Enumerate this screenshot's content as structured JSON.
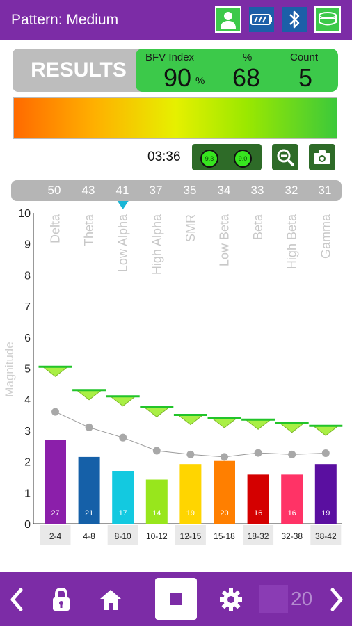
{
  "header": {
    "title": "Pattern: Medium",
    "icons": [
      "user-icon",
      "battery-icon",
      "bluetooth-icon",
      "headband-icon"
    ]
  },
  "results": {
    "label": "RESULTS",
    "bfv_label": "BFV Index",
    "bfv_value": "90",
    "bfv_unit": "%",
    "pct_label": "%",
    "pct_value": "68",
    "count_label": "Count",
    "count_value": "5"
  },
  "controls": {
    "timer": "03:36",
    "knob_left": "9.3",
    "knob_right": "9.0"
  },
  "strip_values": [
    "50",
    "43",
    "41",
    "37",
    "35",
    "34",
    "33",
    "32",
    "31"
  ],
  "bottom": {
    "counter": "20"
  },
  "colors": {
    "brand": "#7c2ca6",
    "results_green": "#3cc94a",
    "threshold_marker": "#a9ef45"
  },
  "chart_data": {
    "type": "bar",
    "ylabel": "Magnitude",
    "ylim": [
      0,
      10
    ],
    "yticks": [
      "0",
      "1",
      "2",
      "3",
      "4",
      "5",
      "6",
      "7",
      "8",
      "9",
      "10"
    ],
    "bands": [
      "Delta",
      "Theta",
      "Low Alpha",
      "High Alpha",
      "SMR",
      "Low Beta",
      "Beta",
      "High Beta",
      "Gamma"
    ],
    "categories": [
      "2-4",
      "4-8",
      "8-10",
      "10-12",
      "12-15",
      "15-18",
      "18-32",
      "32-38",
      "38-42"
    ],
    "values": [
      2.7,
      2.15,
      1.7,
      1.42,
      1.92,
      2.02,
      1.58,
      1.58,
      1.92
    ],
    "bar_labels": [
      "27",
      "21",
      "17",
      "14",
      "19",
      "20",
      "16",
      "16",
      "19"
    ],
    "bar_colors": [
      "#8b1faa",
      "#1560a8",
      "#13c9e0",
      "#98e61c",
      "#ffd500",
      "#ff7f00",
      "#d40000",
      "#ff3366",
      "#5a0fa0"
    ],
    "average_line": [
      3.6,
      3.1,
      2.77,
      2.35,
      2.23,
      2.15,
      2.28,
      2.23,
      2.27
    ],
    "thresholds": [
      5.05,
      4.3,
      4.1,
      3.75,
      3.5,
      3.4,
      3.35,
      3.25,
      3.15
    ],
    "selected_band": "Low Alpha",
    "grid": false
  }
}
